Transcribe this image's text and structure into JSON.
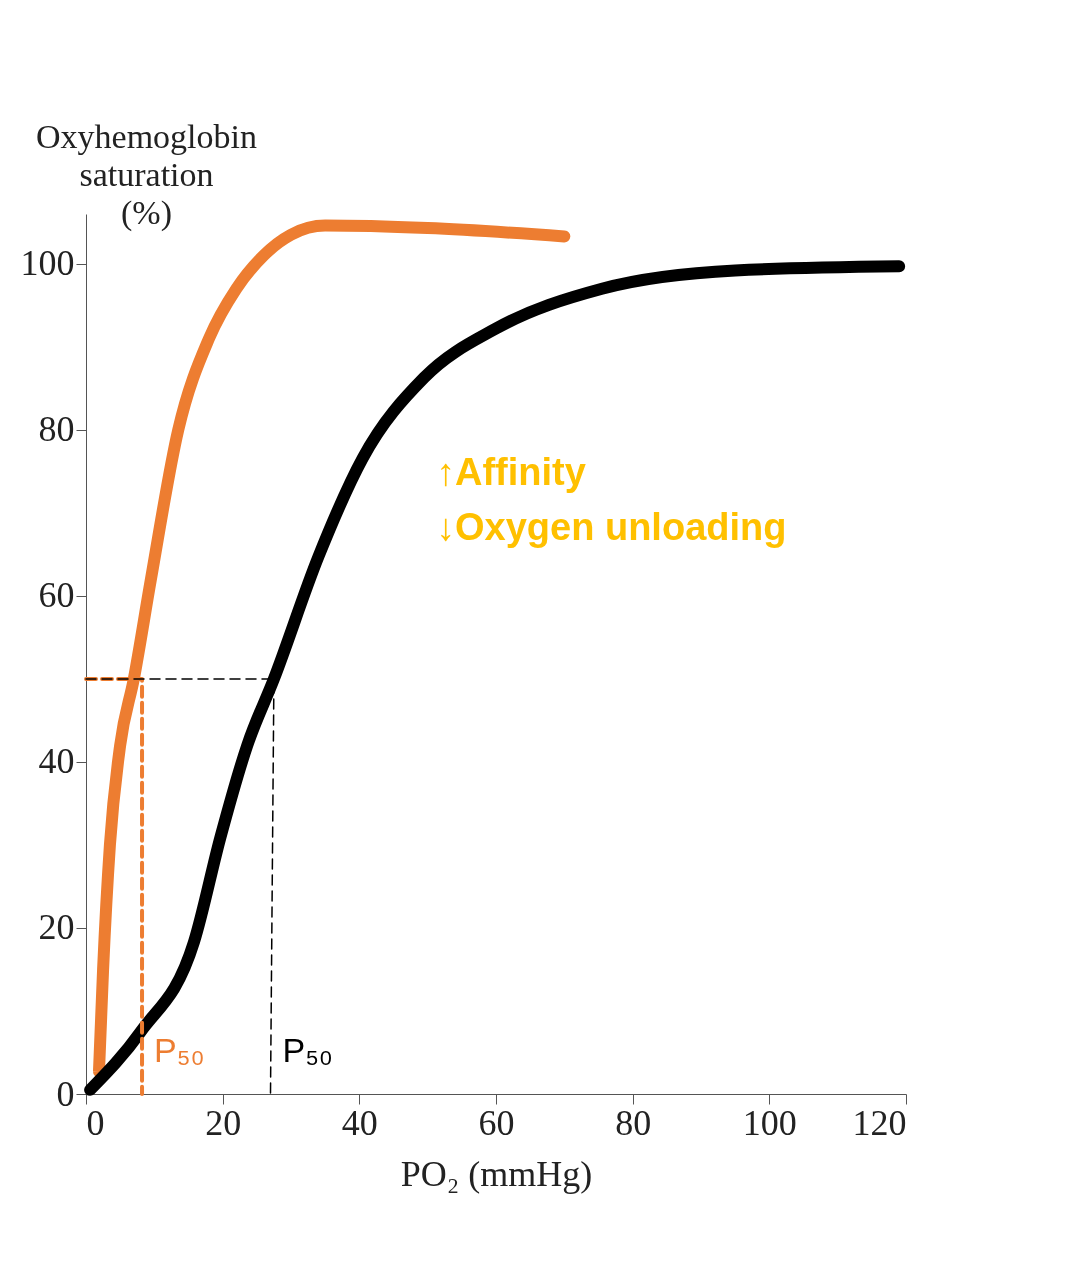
{
  "chart_data": {
    "type": "line",
    "xlabel": "PO₂ (mmHg)",
    "ylabel": "Oxyhemoglobin\nsaturation\n(%)",
    "xlim": [
      0,
      120
    ],
    "xticks": [
      0,
      20,
      40,
      60,
      80,
      100,
      120
    ],
    "ylim": [
      0,
      106
    ],
    "yticks": [
      0,
      20,
      40,
      60,
      80,
      100
    ],
    "grid": false,
    "marker": "none",
    "series": [
      {
        "color": "#ed7d31",
        "line_style": "solid",
        "x": [
          1.9,
          2.5,
          3.5,
          5,
          7,
          9.5,
          13.5,
          18,
          22,
          26,
          30,
          35,
          50,
          70
        ],
        "values": [
          2.7,
          15,
          30,
          42,
          50,
          62,
          80,
          91,
          97,
          101,
          103.5,
          104.6,
          104.3,
          103.3
        ]
      },
      {
        "color": "#000000",
        "line_style": "solid",
        "x": [
          0.6,
          8,
          15.8,
          19.7,
          23.6,
          27.5,
          34,
          40.5,
          49.5,
          60,
          75.5,
          95,
          119
        ],
        "values": [
          0.5,
          7.5,
          18.3,
          31,
          42,
          50,
          64.7,
          76.6,
          86.3,
          92.2,
          97,
          99.2,
          99.7
        ]
      },
      {
        "color": "#ed7d31",
        "line_style": "dashed",
        "x": [
          0,
          8.2,
          8.2
        ],
        "values": [
          50,
          50,
          0
        ]
      },
      {
        "color": "#000000",
        "line_style": "dashed",
        "x": [
          0,
          27.5,
          27
        ],
        "values": [
          50,
          50,
          0
        ]
      }
    ],
    "annotations": [
      {
        "text": "P₅₀",
        "x": 8.2,
        "y": 5
      },
      {
        "text": "P₅₀",
        "x": 27,
        "y": 5
      },
      "↑Affinity",
      "↓Oxygen unloading"
    ]
  }
}
